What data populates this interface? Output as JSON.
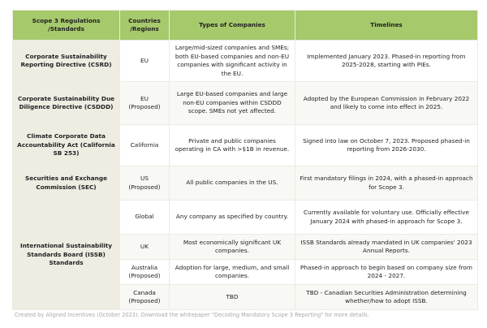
{
  "headers": {
    "regulation": "Scope 3 Regulations /Standards",
    "region": "Countries /Regions",
    "companies": "Types of Companies",
    "timelines": "Timelines"
  },
  "rows": [
    {
      "regulation": "Corporate Sustainability Reporting Directive (CSRD)",
      "region": "EU",
      "companies": "Large/mid-sized companies and SMEs; both EU-based companies and non-EU companies with significant activity in the EU.",
      "timelines": "Implemented January 2023. Phased-in reporting from 2025-2028, starting with PIEs."
    },
    {
      "regulation": "Corporate Sustainability Due Diligence Directive (CSDDD)",
      "region": "EU (Proposed)",
      "companies": "Large EU-based companies and large non-EU companies within CSDDD scope. SMEs not yet affected.",
      "timelines": "Adopted by the European Commission in February 2022 and likely to come into effect in 2025."
    },
    {
      "regulation": "Climate Corporate Data Accountability Act (California SB 253)",
      "region": "California",
      "companies": "Private and public companies operating in CA with >$1B in revenue.",
      "timelines": "Signed into law on October 7, 2023. Proposed phased-in reporting from 2026-2030."
    },
    {
      "regulation": "Securities and Exchange Commission (SEC)",
      "region": "US (Proposed)",
      "companies": "All public companies in the US.",
      "timelines": "First mandatory filings in 2024, with a phased-in approach for Scope 3."
    },
    {
      "regulation": "International Sustainability Standards Board (ISSB) Standards",
      "region": "Global",
      "companies": "Any company as specified by country.",
      "timelines": "Currently available for voluntary use. Officially effective January 2024 with phased-in approach for Scope 3."
    },
    {
      "region": "UK",
      "companies": "Most economically significant UK companies.",
      "timelines": "ISSB Standards already mandated in UK companies' 2023 Annual Reports."
    },
    {
      "region": "Australia (Proposed)",
      "companies": "Adoption for large, medium, and small companies.",
      "timelines": "Phased-in approach to begin based on company size from 2024 - 2027."
    },
    {
      "region": "Canada (Proposed)",
      "companies": "TBD",
      "timelines": "TBD - Canadian Securities Administration determining whether/how to adopt ISSB."
    }
  ],
  "footer": "Created by Aligned Incentives (October 2023). Download the whitepaper \"Decoding Mandatory Scope 3 Reporting\" for more details.",
  "colors": {
    "header": "#a6c96c",
    "first_column": "#efece2"
  }
}
